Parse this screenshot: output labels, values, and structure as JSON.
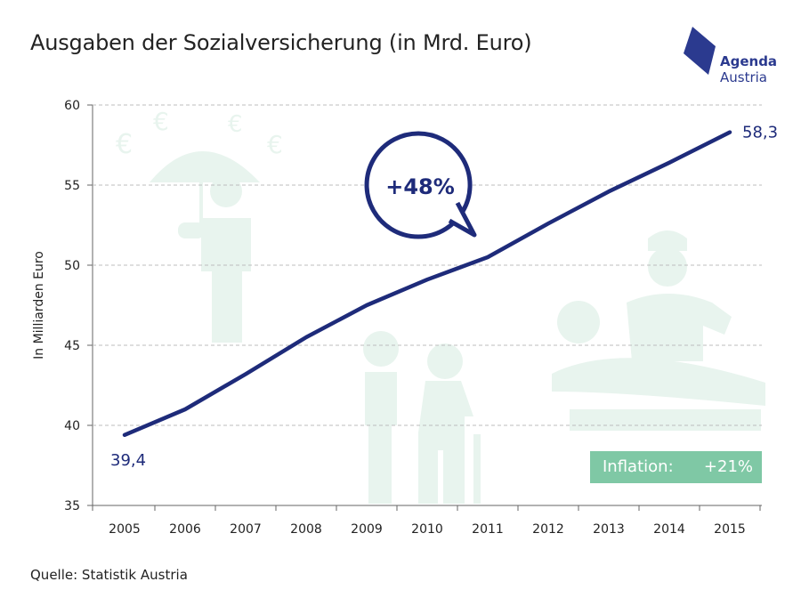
{
  "title": "Ausgaben der Sozialversicherung (in Mrd. Euro)",
  "logo": {
    "line1": "Agenda",
    "line2": "Austria"
  },
  "source": "Quelle: Statistik Austria",
  "bubble_text": "+48%",
  "inflation": {
    "label": "Inflation:",
    "value": "+21%"
  },
  "colors": {
    "line": "#1e2b7a",
    "accent": "#2b3a8f",
    "inflation_bg": "#7fc8a5",
    "illustration": "#e8f4ee"
  },
  "chart_data": {
    "type": "line",
    "title": "Ausgaben der Sozialversicherung (in Mrd. Euro)",
    "xlabel": "",
    "ylabel": "In Milliarden Euro",
    "categories": [
      "2005",
      "2006",
      "2007",
      "2008",
      "2009",
      "2010",
      "2011",
      "2012",
      "2013",
      "2014",
      "2015"
    ],
    "series": [
      {
        "values": [
          39.4,
          41.0,
          43.2,
          45.5,
          47.5,
          49.1,
          50.5,
          52.6,
          54.6,
          56.4,
          58.3
        ]
      }
    ],
    "ylim": [
      35,
      60
    ],
    "yticks": [
      "35",
      "40",
      "45",
      "50",
      "55",
      "60"
    ],
    "grid": true,
    "data_labels": {
      "first": "39,4",
      "last": "58,3"
    }
  }
}
